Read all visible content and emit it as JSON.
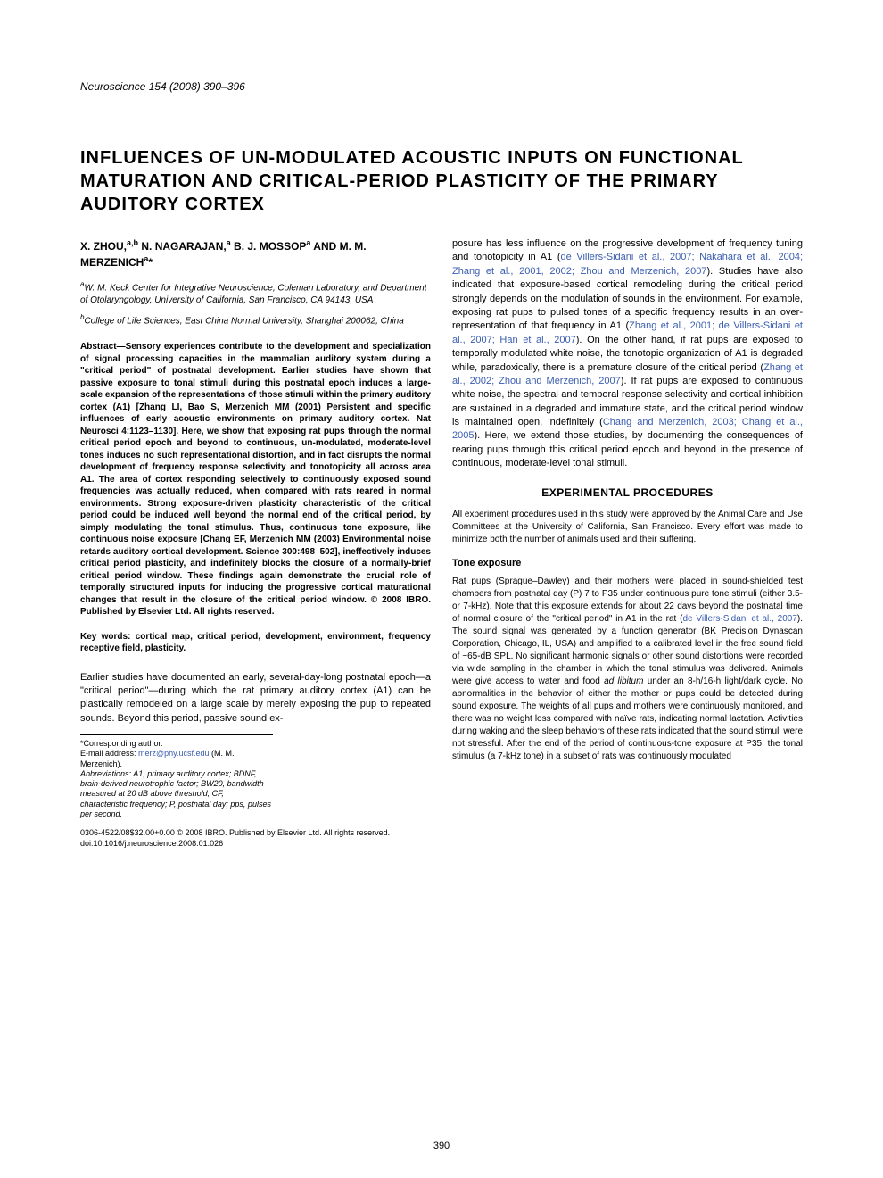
{
  "journal": "Neuroscience 154 (2008) 390–396",
  "title": "INFLUENCES OF UN-MODULATED ACOUSTIC INPUTS ON FUNCTIONAL MATURATION AND CRITICAL-PERIOD PLASTICITY OF THE PRIMARY AUDITORY CORTEX",
  "authors_html": "X. ZHOU,<sup>a,b</sup> N. NAGARAJAN,<sup>a</sup> B. J. MOSSOP<sup>a</sup> AND M. M. MERZENICH<sup>a</sup>*",
  "affil_a": "W. M. Keck Center for Integrative Neuroscience, Coleman Laboratory, and Department of Otolaryngology, University of California, San Francisco, CA 94143, USA",
  "affil_b": "College of Life Sciences, East China Normal University, Shanghai 200062, China",
  "abstract": "Abstract—Sensory experiences contribute to the development and specialization of signal processing capacities in the mammalian auditory system during a \"critical period\" of postnatal development. Earlier studies have shown that passive exposure to tonal stimuli during this postnatal epoch induces a large-scale expansion of the representations of those stimuli within the primary auditory cortex (A1) [Zhang LI, Bao S, Merzenich MM (2001) Persistent and specific influences of early acoustic environments on primary auditory cortex. Nat Neurosci 4:1123–1130]. Here, we show that exposing rat pups through the normal critical period epoch and beyond to continuous, un-modulated, moderate-level tones induces no such representational distortion, and in fact disrupts the normal development of frequency response selectivity and tonotopicity all across area A1. The area of cortex responding selectively to continuously exposed sound frequencies was actually reduced, when compared with rats reared in normal environments. Strong exposure-driven plasticity characteristic of the critical period could be induced well beyond the normal end of the critical period, by simply modulating the tonal stimulus. Thus, continuous tone exposure, like continuous noise exposure [Chang EF, Merzenich MM (2003) Environmental noise retards auditory cortical development. Science 300:498–502], ineffectively induces critical period plasticity, and indefinitely blocks the closure of a normally-brief critical period window. These findings again demonstrate the crucial role of temporally structured inputs for inducing the progressive cortical maturational changes that result in the closure of the critical period window. © 2008 IBRO. Published by Elsevier Ltd. All rights reserved.",
  "keywords": "Key words: cortical map, critical period, development, environment, frequency receptive field, plasticity.",
  "intro": "Earlier studies have documented an early, several-day-long postnatal epoch—a \"critical period\"—during which the rat primary auditory cortex (A1) can be plastically remodeled on a large scale by merely exposing the pup to repeated sounds. Beyond this period, passive sound ex-",
  "footnote_corr": "*Corresponding author.",
  "footnote_email_label": "E-mail address: ",
  "footnote_email": "merz@phy.ucsf.edu",
  "footnote_email_after": " (M. M. Merzenich).",
  "footnote_abbrev": "Abbreviations: A1, primary auditory cortex; BDNF, brain-derived neurotrophic factor; BW20, bandwidth measured at 20 dB above threshold; CF, characteristic frequency; P, postnatal day; pps, pulses per second.",
  "copyright": "0306-4522/08$32.00+0.00 © 2008 IBRO. Published by Elsevier Ltd. All rights reserved.",
  "doi": "doi:10.1016/j.neuroscience.2008.01.026",
  "col2_para1_a": "posure has less influence on the progressive development of frequency tuning and tonotopicity in A1 (",
  "col2_para1_link1": "de Villers-Sidani et al., 2007; Nakahara et al., 2004; Zhang et al., 2001, 2002; Zhou and Merzenich, 2007",
  "col2_para1_b": "). Studies have also indicated that exposure-based cortical remodeling during the critical period strongly depends on the modulation of sounds in the environment. For example, exposing rat pups to pulsed tones of a specific frequency results in an over-representation of that frequency in A1 (",
  "col2_para1_link2": "Zhang et al., 2001; de Villers-Sidani et al., 2007; Han et al., 2007",
  "col2_para1_c": "). On the other hand, if rat pups are exposed to temporally modulated white noise, the tonotopic organization of A1 is degraded while, paradoxically, there is a premature closure of the critical period (",
  "col2_para1_link3": "Zhang et al., 2002; Zhou and Merzenich, 2007",
  "col2_para1_d": "). If rat pups are exposed to continuous white noise, the spectral and temporal response selectivity and cortical inhibition are sustained in a degraded and immature state, and the critical period window is maintained open, indefinitely (",
  "col2_para1_link4": "Chang and Merzenich, 2003; Chang et al., 2005",
  "col2_para1_e": "). Here, we extend those studies, by documenting the consequences of rearing pups through this critical period epoch and beyond in the presence of continuous, moderate-level tonal stimuli.",
  "section_exp": "EXPERIMENTAL PROCEDURES",
  "exp_intro": "All experiment procedures used in this study were approved by the Animal Care and Use Committees at the University of California, San Francisco. Every effort was made to minimize both the number of animals used and their suffering.",
  "sub_tone": "Tone exposure",
  "tone_a": "Rat pups (Sprague–Dawley) and their mothers were placed in sound-shielded test chambers from postnatal day (P) 7 to P35 under continuous pure tone stimuli (either 3.5- or 7-kHz). Note that this exposure extends for about 22 days beyond the postnatal time of normal closure of the \"critical period\" in A1 in the rat (",
  "tone_link": "de Villers-Sidani et al., 2007",
  "tone_b": "). The sound signal was generated by a function generator (BK Precision Dynascan Corporation, Chicago, IL, USA) and amplified to a calibrated level in the free sound field of ~65-dB SPL. No significant harmonic signals or other sound distortions were recorded via wide sampling in the chamber in which the tonal stimulus was delivered. Animals were give access to water and food ",
  "tone_italic": "ad libitum",
  "tone_c": " under an 8-h/16-h light/dark cycle. No abnormalities in the behavior of either the mother or pups could be detected during sound exposure. The weights of all pups and mothers were continuously monitored, and there was no weight loss compared with naïve rats, indicating normal lactation. Activities during waking and the sleep behaviors of these rats indicated that the sound stimuli were not stressful. After the end of the period of continuous-tone exposure at P35, the tonal stimulus (a 7-kHz tone) in a subset of rats was continuously modulated",
  "page_number": "390"
}
